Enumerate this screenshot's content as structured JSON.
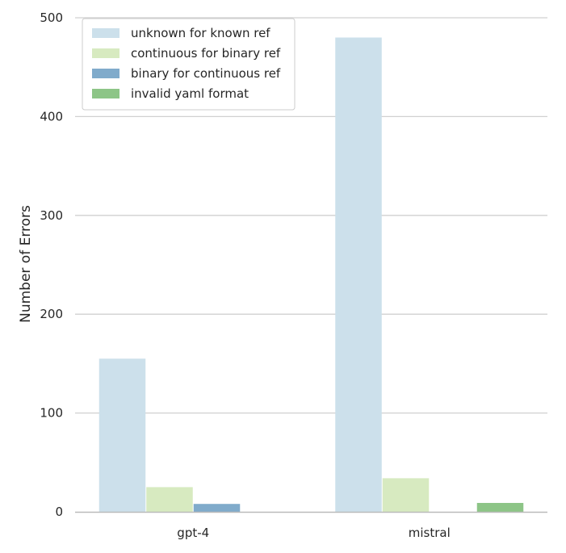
{
  "chart_data": {
    "type": "bar",
    "categories": [
      "gpt-4",
      "mistral"
    ],
    "series": [
      {
        "name": "unknown for known ref",
        "values": [
          155,
          480
        ],
        "color": "#cce0eb"
      },
      {
        "name": "continuous for binary ref",
        "values": [
          25,
          34
        ],
        "color": "#d7eac0"
      },
      {
        "name": "binary for continuous ref",
        "values": [
          8,
          0
        ],
        "color": "#80abcb"
      },
      {
        "name": "invalid yaml format",
        "values": [
          0,
          9
        ],
        "color": "#8dc587"
      }
    ],
    "title": "",
    "xlabel": "",
    "ylabel": "Number of Errors",
    "ylim": [
      0,
      500
    ],
    "yticks": [
      0,
      100,
      200,
      300,
      400,
      500
    ],
    "grid": true,
    "legend_position": "top-left"
  }
}
